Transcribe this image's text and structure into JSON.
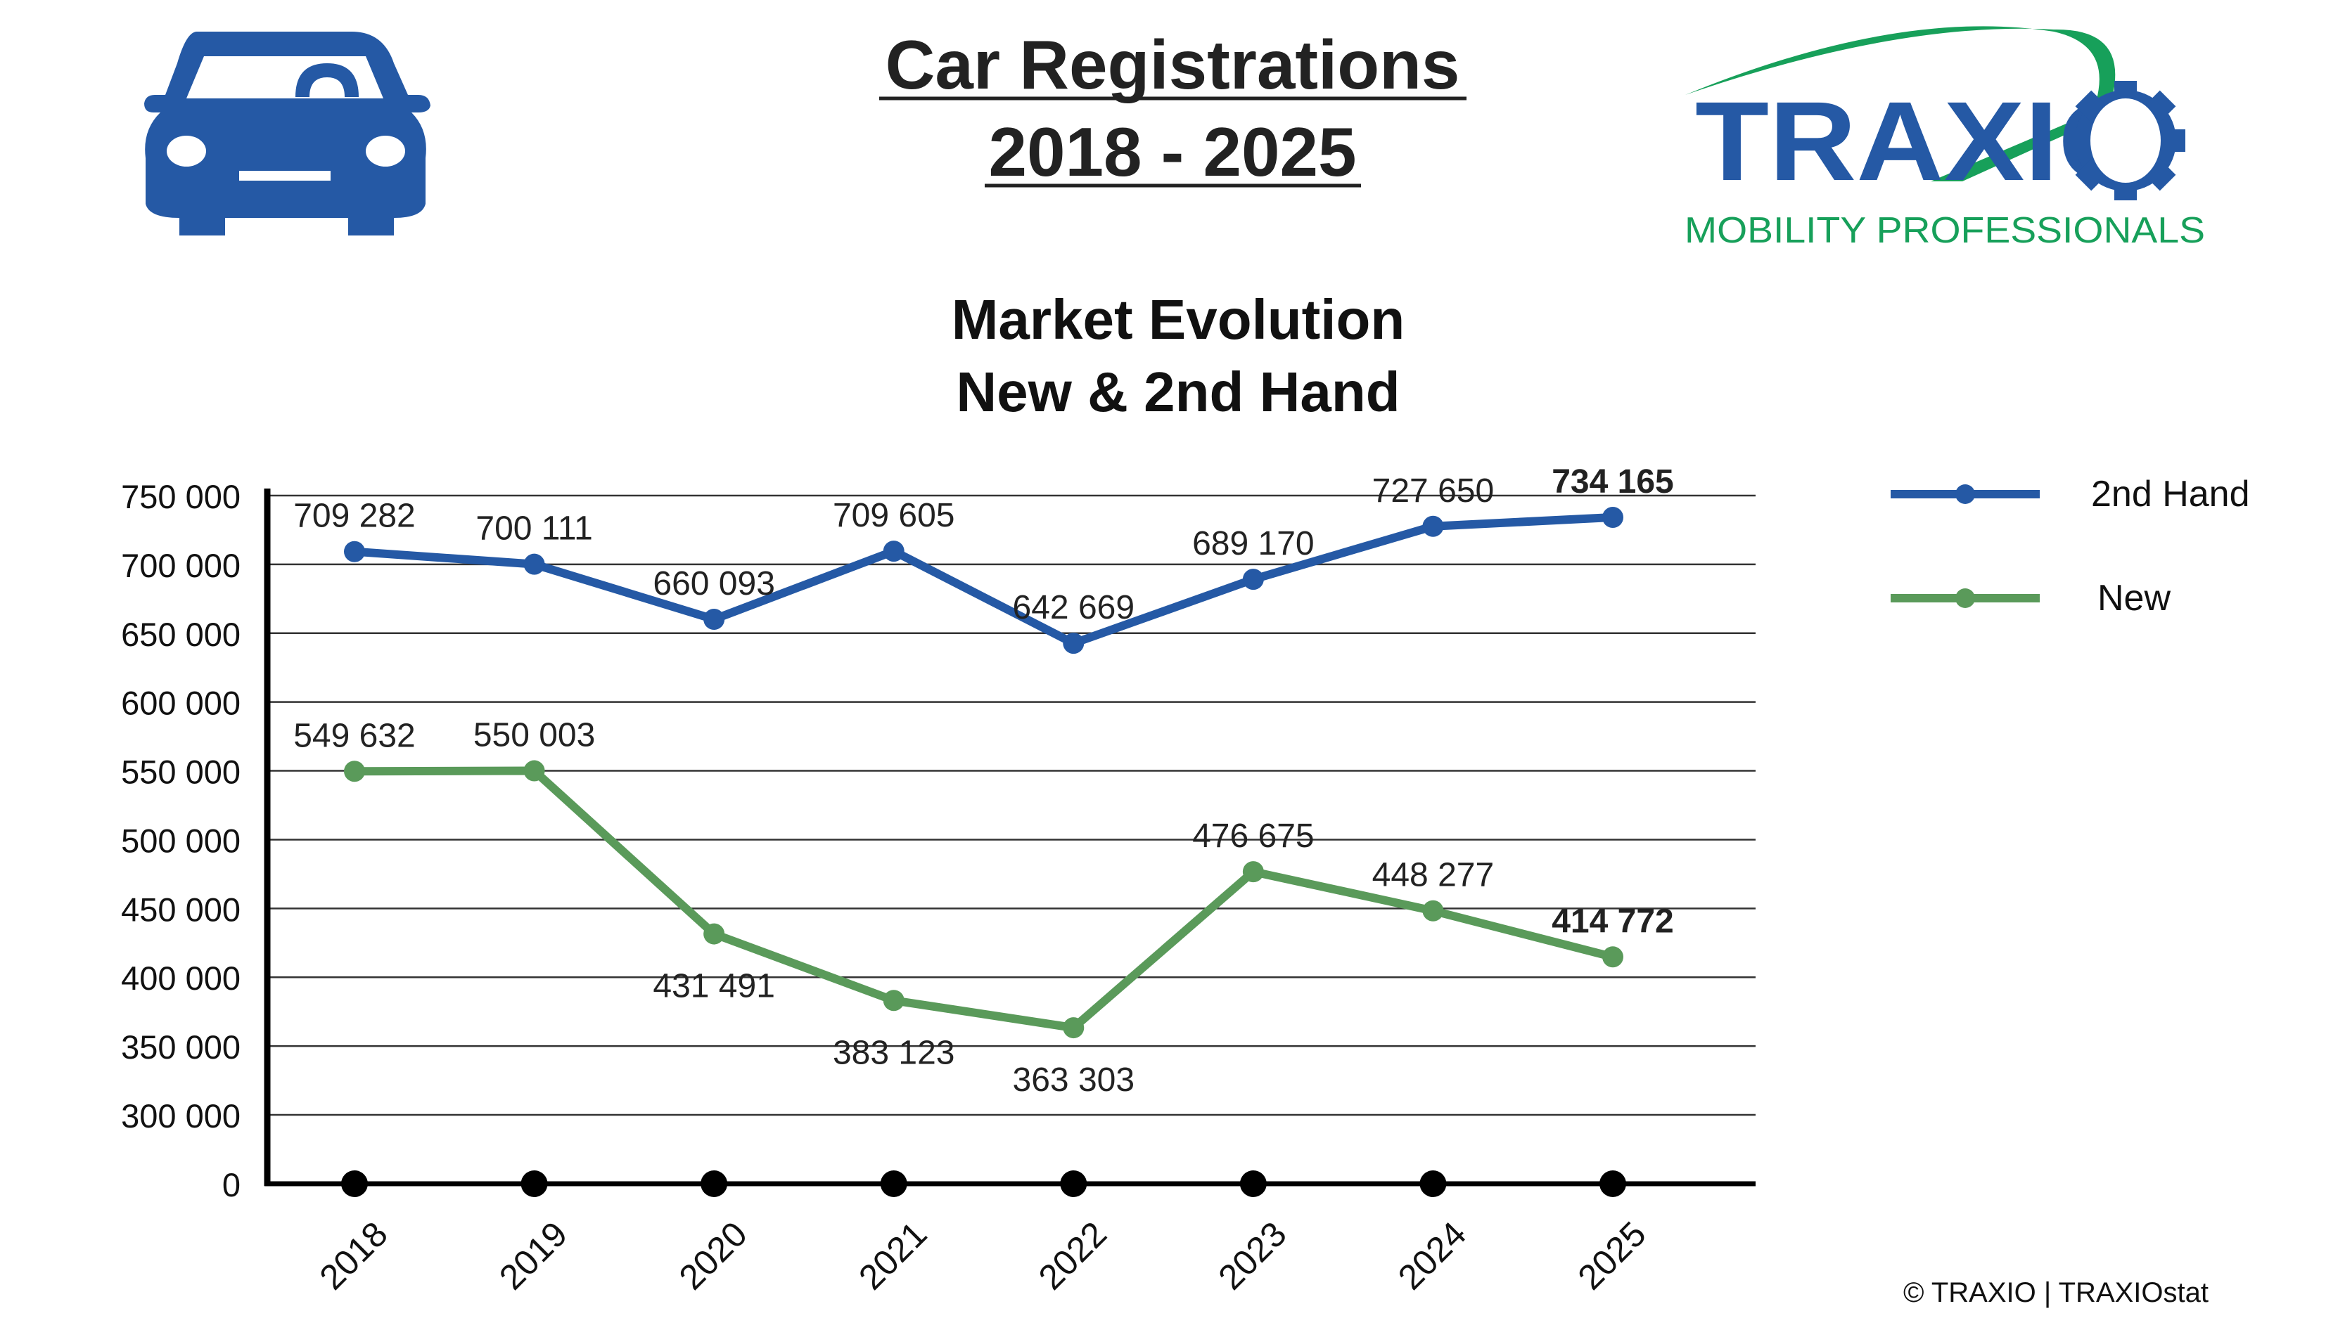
{
  "header": {
    "title_line1": "Car Registrations",
    "title_line2": "2018 - 2025",
    "logo_text": "TRAXIO",
    "logo_tagline": "MOBILITY PROFESSIONALS",
    "car_icon": "car-icon"
  },
  "footer": {
    "copyright": "© TRAXIO | TRAXIOstat"
  },
  "colors": {
    "second_hand": "#2559a5",
    "new": "#5a9a5a",
    "logo_blue": "#2559a5",
    "logo_green": "#17a05a"
  },
  "chart_data": {
    "type": "line",
    "title_line1": "Market Evolution",
    "title_line2": "New & 2nd Hand",
    "categories": [
      "2018",
      "2019",
      "2020",
      "2021",
      "2022",
      "2023",
      "2024",
      "2025"
    ],
    "series": [
      {
        "name": "2nd Hand",
        "values": [
          709282,
          700111,
          660093,
          709605,
          642669,
          689170,
          727650,
          734165
        ],
        "labels": [
          "709 282",
          "700 111",
          "660 093",
          "709 605",
          "642 669",
          "689 170",
          "727 650",
          "734 165"
        ]
      },
      {
        "name": "New",
        "values": [
          549632,
          550003,
          431491,
          383123,
          363303,
          476675,
          448277,
          414772
        ],
        "labels": [
          "549 632",
          "550 003",
          "431 491",
          "383 123",
          "363 303",
          "476 675",
          "448 277",
          "414 772"
        ]
      }
    ],
    "y_ticks": [
      0,
      300000,
      350000,
      400000,
      450000,
      500000,
      550000,
      600000,
      650000,
      700000,
      750000
    ],
    "y_tick_labels": [
      "0",
      "300 000",
      "350 000",
      "400 000",
      "450 000",
      "500 000",
      "550 000",
      "600 000",
      "650 000",
      "700 000",
      "750 000"
    ],
    "y_axis_break": [
      0,
      300000
    ],
    "ylim": [
      0,
      750000
    ],
    "grid": true,
    "legend_position": "right"
  }
}
